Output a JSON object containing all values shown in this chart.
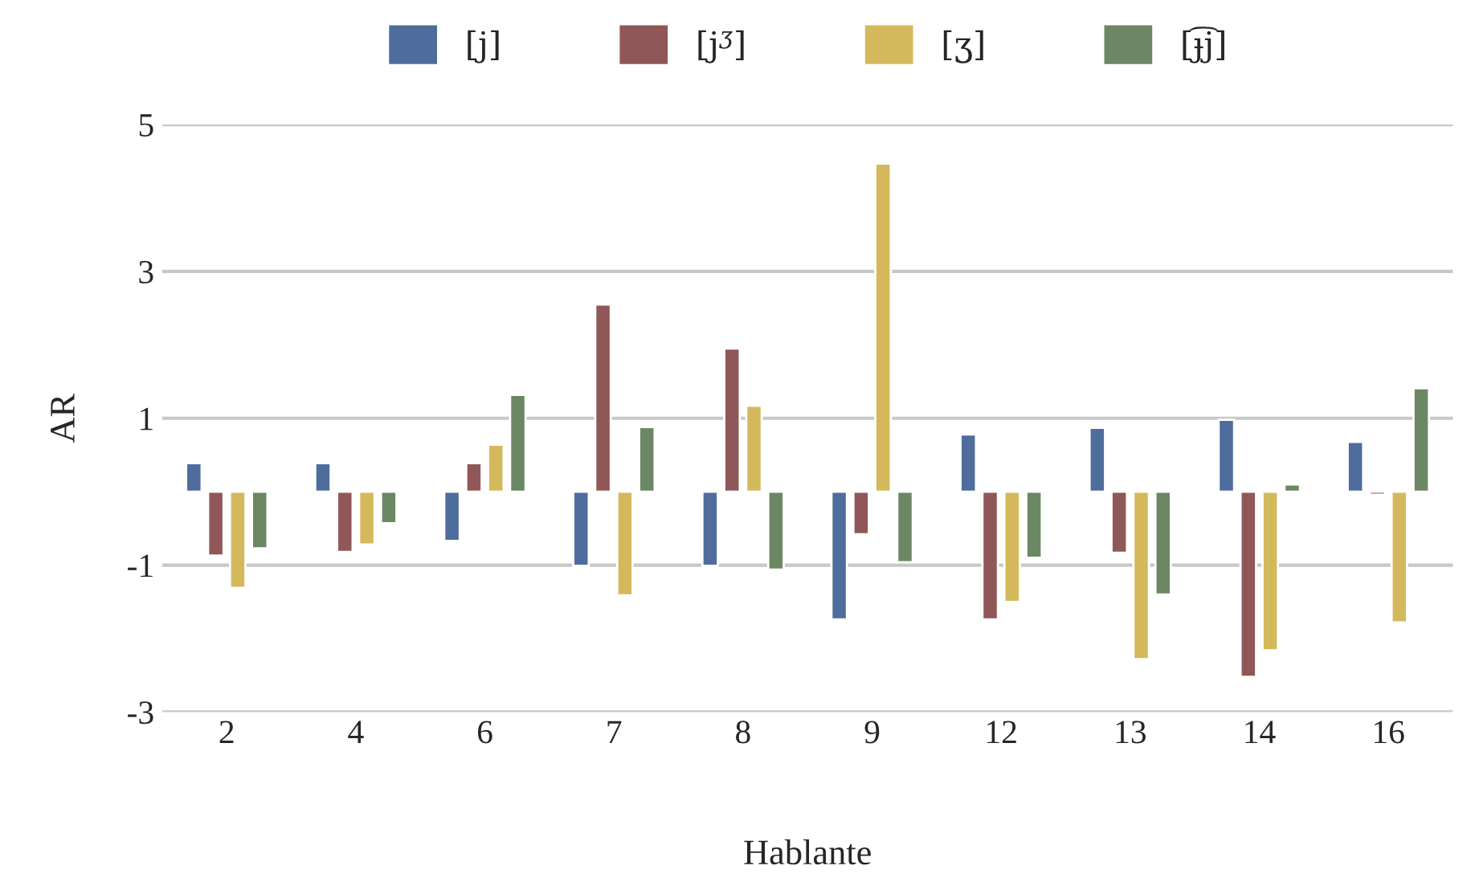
{
  "chart_data": {
    "type": "bar",
    "xlabel": "Hablante",
    "ylabel": "AR",
    "categories": [
      "2",
      "4",
      "6",
      "7",
      "8",
      "9",
      "12",
      "13",
      "14",
      "16"
    ],
    "series": [
      {
        "name": "[j]",
        "color": "#4e6d9c",
        "values": [
          0.39,
          0.39,
          -0.67,
          -1.01,
          -1.01,
          -1.74,
          0.78,
          0.87,
          0.98,
          0.68
        ]
      },
      {
        "name": "[j$^{ʒ}$]",
        "color": "#8f5757",
        "values": [
          -0.87,
          -0.82,
          0.39,
          2.55,
          1.95,
          -0.58,
          -1.74,
          -0.83,
          -2.52,
          -0.04
        ]
      },
      {
        "name": "[ʒ]",
        "color": "#d4b95c",
        "values": [
          -1.31,
          -0.72,
          0.64,
          -1.41,
          1.17,
          4.47,
          -1.5,
          -2.28,
          -2.16,
          -1.78
        ]
      },
      {
        "name": "[ɟ͡j]",
        "color": "#6b8763",
        "values": [
          -0.77,
          -0.43,
          1.32,
          0.88,
          -1.06,
          -0.96,
          -0.9,
          -1.4,
          0.1,
          1.41
        ]
      }
    ],
    "ylim": [
      -3,
      5
    ],
    "yticks": [
      -3,
      -1,
      1,
      3,
      5
    ],
    "grid": "y",
    "legend": "top"
  }
}
